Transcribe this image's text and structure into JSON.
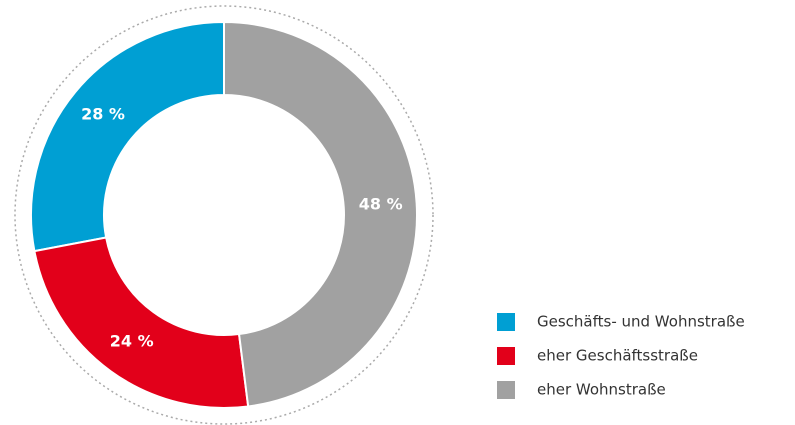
{
  "chart_data": {
    "type": "donut",
    "categories": [
      "Geschäfts- und Wohnstraße",
      "eher Geschäftsstraße",
      "eher Wohnstraße"
    ],
    "values": [
      28,
      24,
      48
    ],
    "value_labels": [
      "28 %",
      "24 %",
      "48 %"
    ],
    "colors": [
      "#009fd3",
      "#e2001a",
      "#a1a1a1"
    ],
    "legend": "right"
  }
}
